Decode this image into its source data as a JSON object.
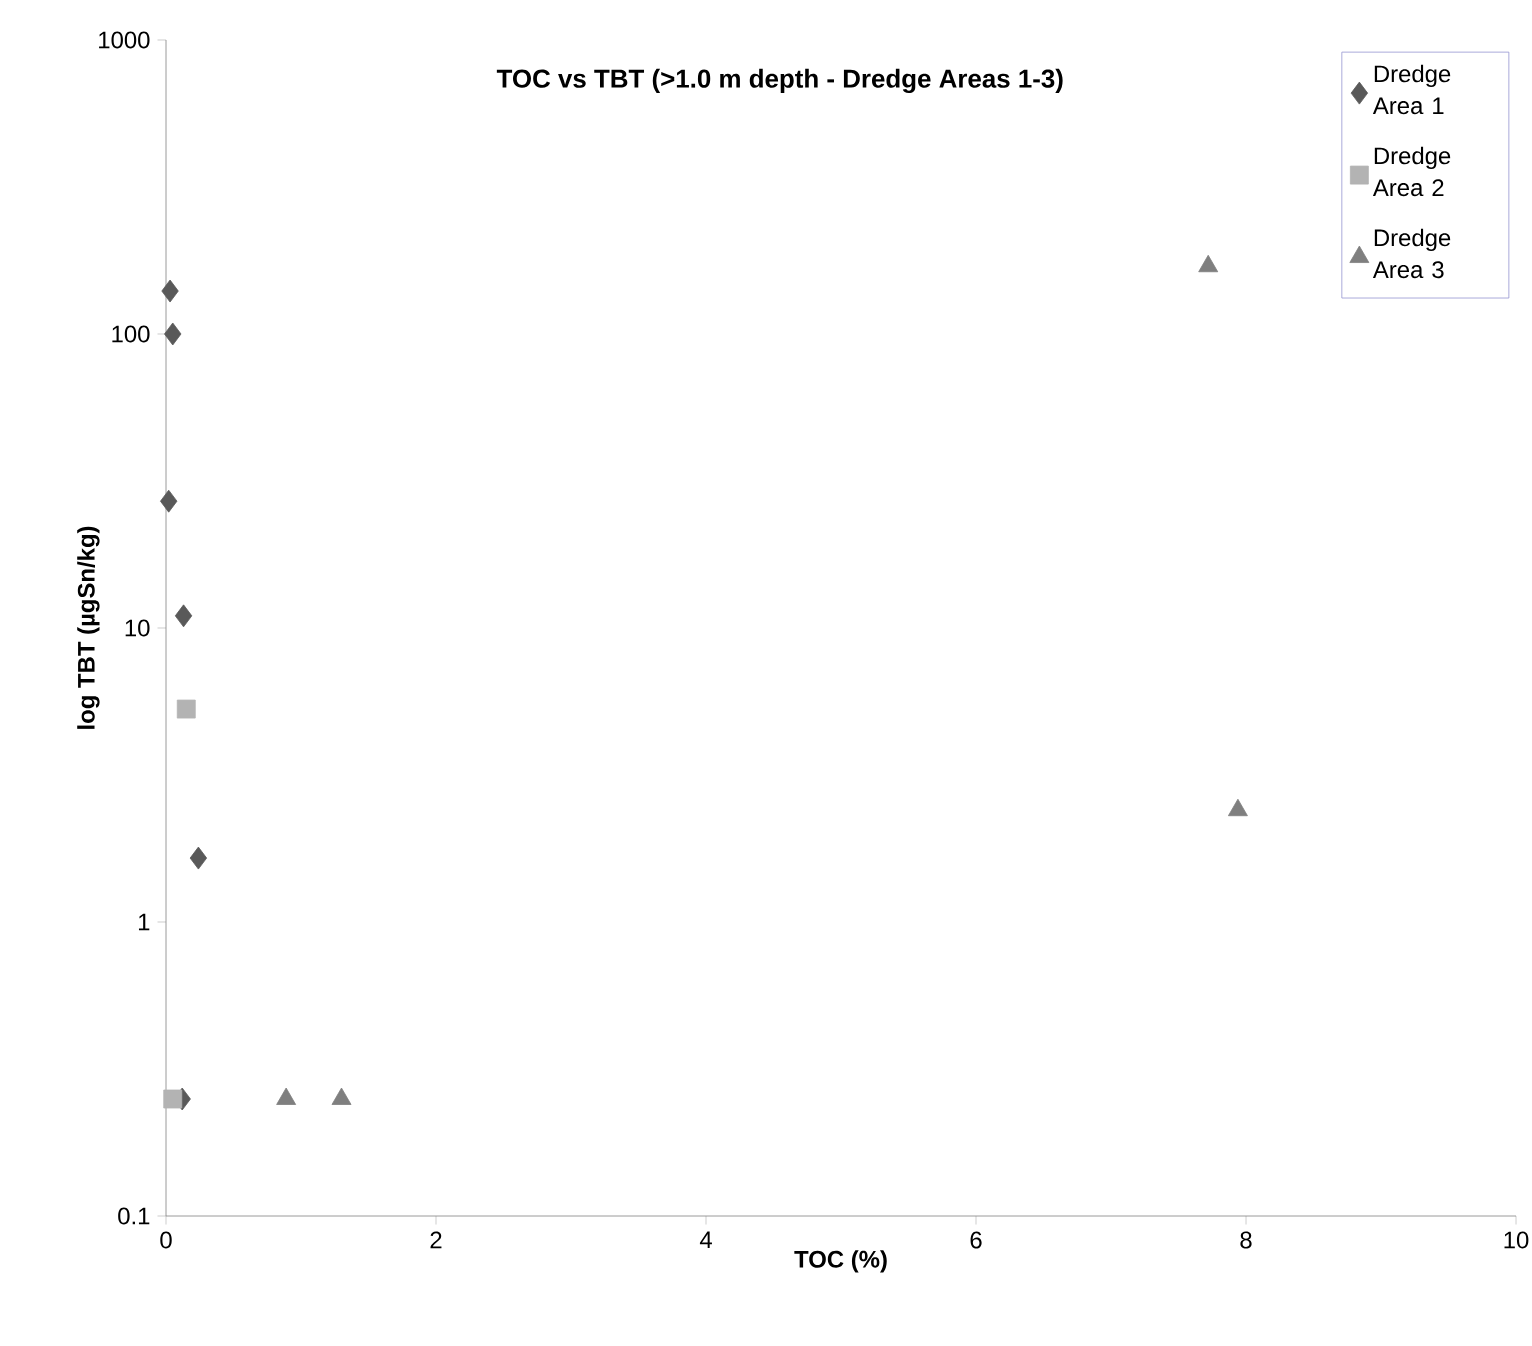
{
  "chart_data": {
    "type": "scatter",
    "title": "TOC vs TBT (>1.0 m depth - Dredge Areas 1-3)",
    "xlabel": "TOC (%)",
    "ylabel": "log TBT (µgSn/kg)",
    "log": "y",
    "xlim": [
      0,
      10
    ],
    "xticks": [
      0,
      2,
      4,
      6,
      8,
      10
    ],
    "ylim": [
      0.1,
      1000
    ],
    "yticks": [
      0.1,
      1,
      10,
      100,
      1000
    ],
    "grid": false,
    "legend": "top right",
    "series": [
      {
        "name": "Dredge Area 1",
        "color": "#595959",
        "marker": "diamond",
        "x": [
          0.03,
          0.05,
          0.02,
          0.13,
          0.24,
          0.12
        ],
        "values": [
          140,
          100,
          27,
          11,
          1.65,
          0.25
        ]
      },
      {
        "name": "Dredge Area 2",
        "color": "#b3b3b3",
        "marker": "square",
        "x": [
          0.15,
          0.05
        ],
        "values": [
          5.3,
          0.25
        ]
      },
      {
        "name": "Dredge Area 3",
        "color": "#7f7f7f",
        "marker": "triangle",
        "x": [
          0.89,
          1.3,
          7.72,
          7.94
        ],
        "values": [
          0.25,
          0.25,
          170,
          2.4
        ]
      }
    ]
  }
}
